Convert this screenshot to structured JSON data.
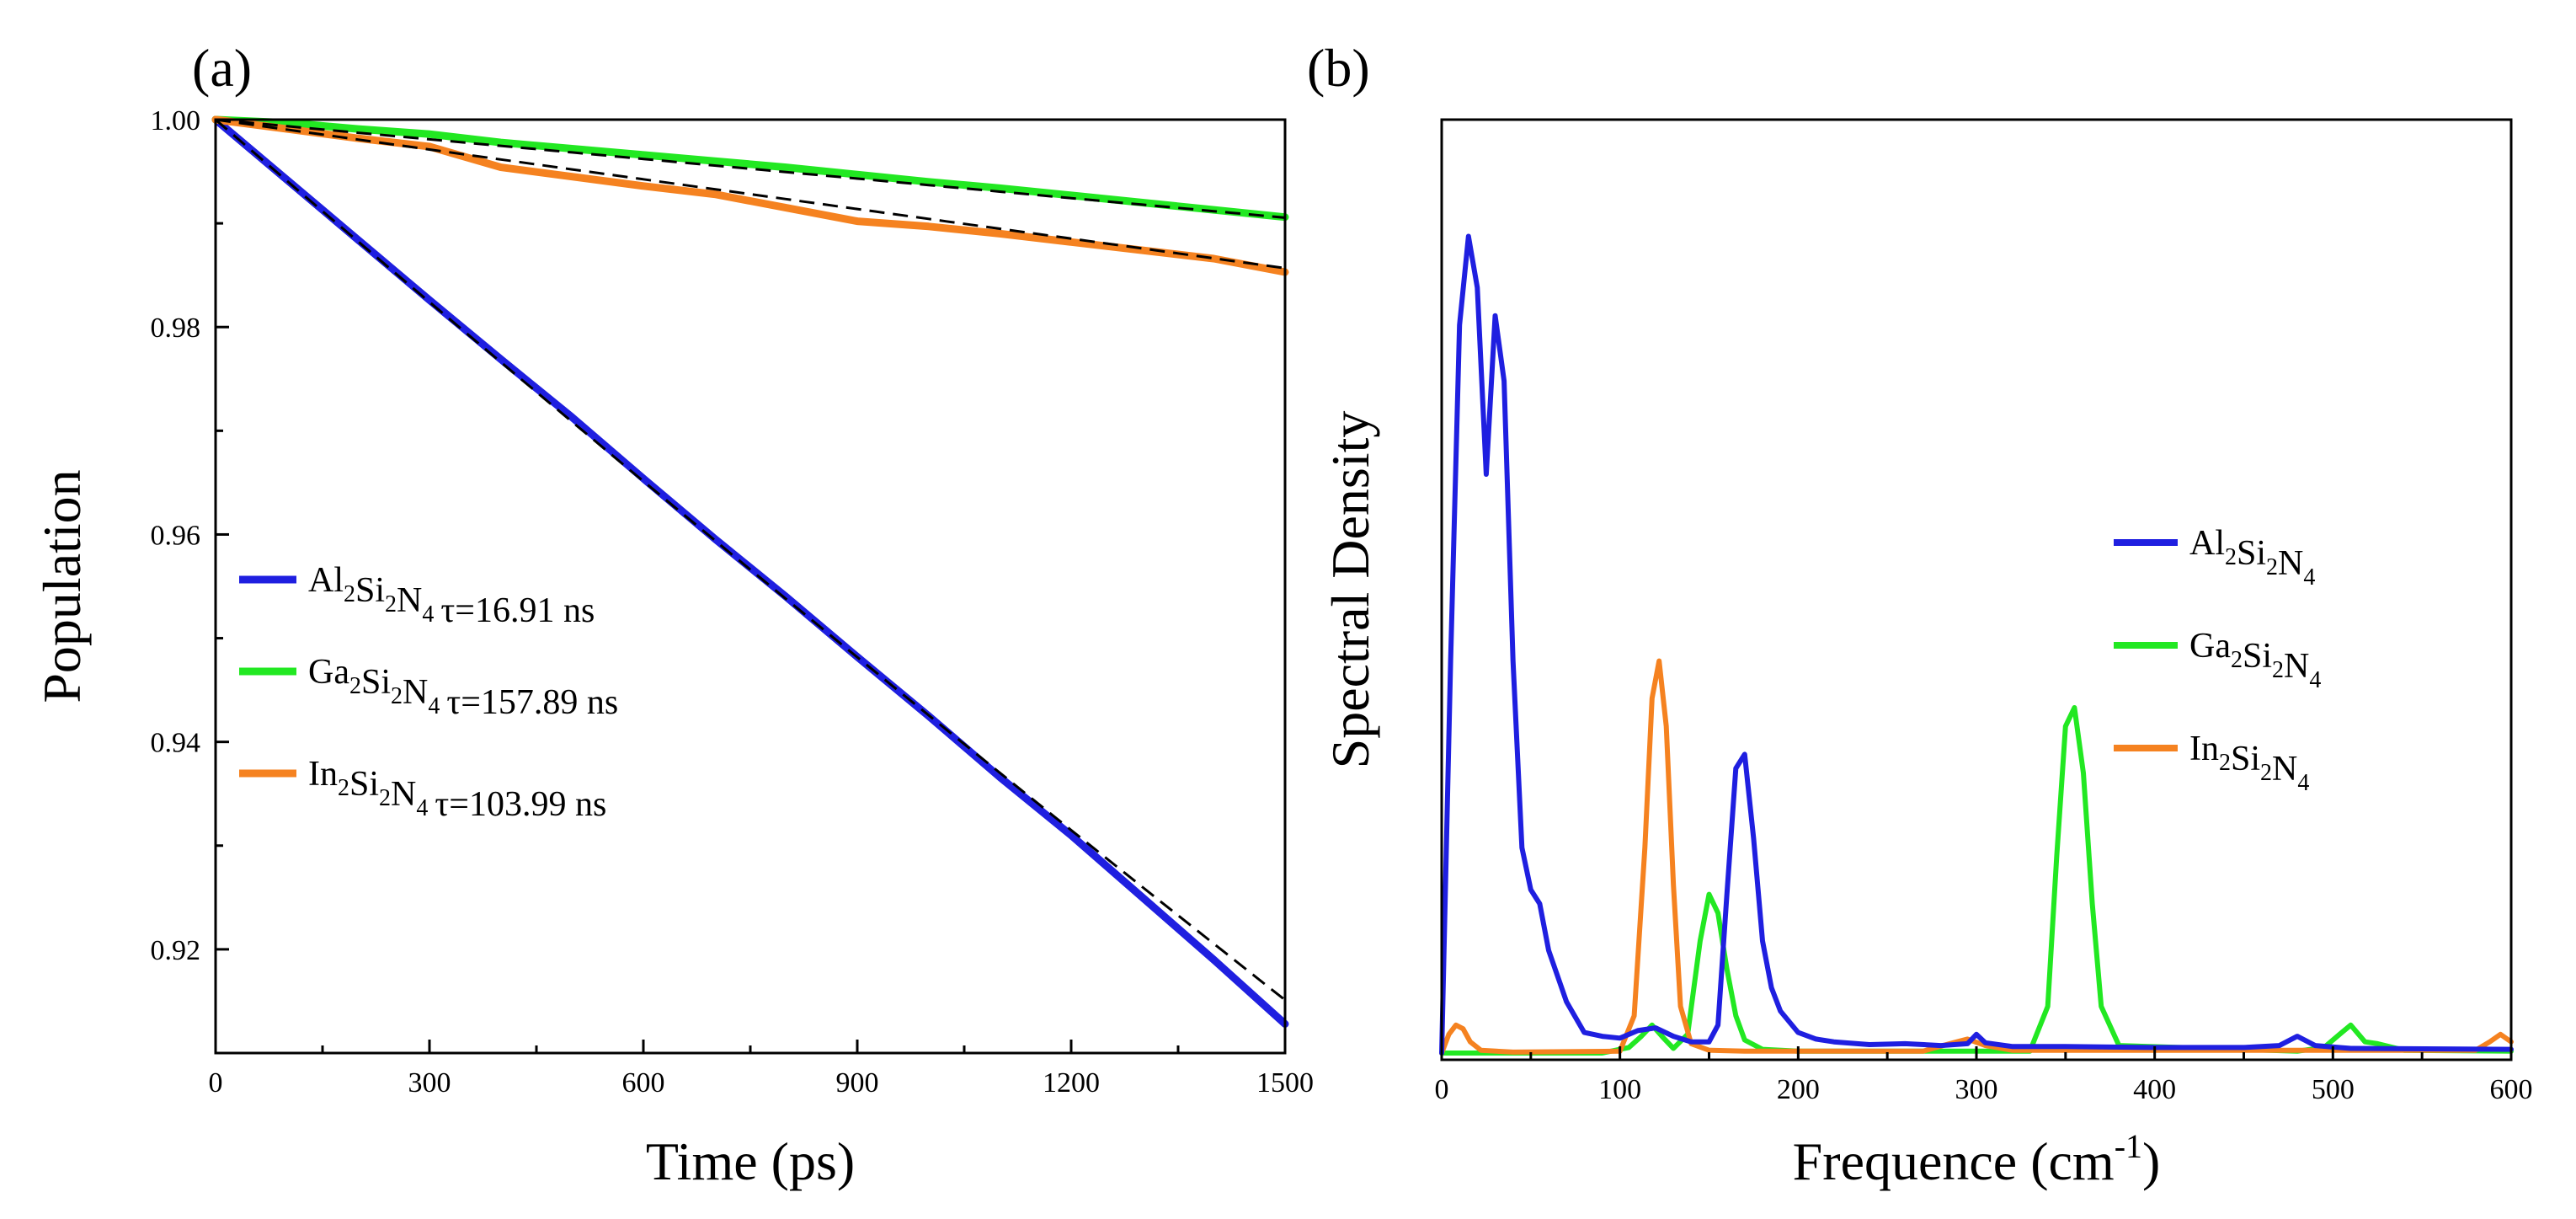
{
  "chart_data": [
    {
      "panel_label": "(a)",
      "type": "line",
      "xlabel": "Time (ps)",
      "ylabel": "Population",
      "xlim": [
        0,
        1500
      ],
      "ylim": [
        0.91,
        1.0
      ],
      "xticks": [
        0,
        300,
        600,
        900,
        1200,
        1500
      ],
      "yticks": [
        0.92,
        0.94,
        0.96,
        0.98,
        1.0
      ],
      "xtick_labels": [
        "0",
        "300",
        "600",
        "900",
        "1200",
        "1500"
      ],
      "ytick_labels": [
        "0.92",
        "0.94",
        "0.96",
        "0.98",
        "1.00"
      ],
      "legend_position": "center-left",
      "series": [
        {
          "name": "Al2Si2N4",
          "formula": [
            {
              "t": "Al",
              "s": "2"
            },
            {
              "t": "Si",
              "s": "2"
            },
            {
              "t": "N",
              "s": "4"
            }
          ],
          "tau_label": "τ=16.91 ns",
          "tau_ns": 16.91,
          "color": "#1f1fe0",
          "x": [
            0,
            100,
            200,
            300,
            400,
            500,
            600,
            700,
            800,
            900,
            1000,
            1100,
            1200,
            1300,
            1400,
            1500
          ],
          "y": [
            1.0,
            0.9942,
            0.9884,
            0.9826,
            0.9769,
            0.9713,
            0.9654,
            0.9596,
            0.954,
            0.9482,
            0.9425,
            0.9366,
            0.931,
            0.925,
            0.919,
            0.9128
          ]
        },
        {
          "name": "Ga2Si2N4",
          "formula": [
            {
              "t": "Ga",
              "s": "2"
            },
            {
              "t": "Si",
              "s": "2"
            },
            {
              "t": "N",
              "s": "4"
            }
          ],
          "tau_label": "τ=157.89 ns",
          "tau_ns": 157.89,
          "color": "#22e822",
          "x": [
            0,
            100,
            200,
            300,
            400,
            500,
            600,
            700,
            800,
            900,
            1000,
            1100,
            1200,
            1300,
            1400,
            1500
          ],
          "y": [
            1.0,
            0.9997,
            0.9991,
            0.9986,
            0.9978,
            0.9972,
            0.9966,
            0.996,
            0.9954,
            0.9947,
            0.994,
            0.9934,
            0.9927,
            0.992,
            0.9913,
            0.9906
          ]
        },
        {
          "name": "In2Si2N4",
          "formula": [
            {
              "t": "In",
              "s": "2"
            },
            {
              "t": "Si",
              "s": "2"
            },
            {
              "t": "N",
              "s": "4"
            }
          ],
          "tau_label": "τ=103.99 ns",
          "tau_ns": 103.99,
          "color": "#f58220",
          "x": [
            0,
            100,
            200,
            300,
            400,
            500,
            600,
            700,
            800,
            900,
            1000,
            1100,
            1200,
            1300,
            1400,
            1500
          ],
          "y": [
            1.0,
            0.9991,
            0.9982,
            0.9974,
            0.9954,
            0.9945,
            0.9936,
            0.9928,
            0.9915,
            0.9902,
            0.9897,
            0.989,
            0.9882,
            0.9874,
            0.9866,
            0.9853
          ]
        }
      ],
      "fits": {
        "style": "dashed",
        "color": "#000000"
      }
    },
    {
      "panel_label": "(b)",
      "type": "line",
      "xlabel": "Frequence (cm",
      "xlabel_sup": "-1",
      "xlabel_end": ")",
      "ylabel": "Spectral Density",
      "xlim": [
        0,
        600
      ],
      "ylim": [
        0,
        1.0
      ],
      "xticks": [
        0,
        100,
        200,
        300,
        400,
        500,
        600
      ],
      "xtick_labels": [
        "0",
        "100",
        "200",
        "300",
        "400",
        "500",
        "600"
      ],
      "legend_position": "center-right",
      "series": [
        {
          "name": "Al2Si2N4",
          "formula": [
            {
              "t": "Al",
              "s": "2"
            },
            {
              "t": "Si",
              "s": "2"
            },
            {
              "t": "N",
              "s": "4"
            }
          ],
          "color": "#1f1fe0",
          "x": [
            0,
            5,
            10,
            15,
            20,
            25,
            30,
            35,
            40,
            45,
            50,
            55,
            60,
            70,
            80,
            90,
            100,
            110,
            120,
            130,
            140,
            150,
            155,
            160,
            165,
            170,
            175,
            180,
            185,
            190,
            200,
            210,
            220,
            240,
            260,
            280,
            295,
            300,
            305,
            320,
            350,
            400,
            450,
            470,
            480,
            490,
            510,
            600
          ],
          "y": [
            0,
            0.42,
            0.78,
            0.875,
            0.82,
            0.62,
            0.79,
            0.72,
            0.42,
            0.22,
            0.175,
            0.16,
            0.11,
            0.055,
            0.022,
            0.018,
            0.016,
            0.024,
            0.027,
            0.018,
            0.012,
            0.012,
            0.03,
            0.17,
            0.305,
            0.32,
            0.23,
            0.12,
            0.07,
            0.045,
            0.022,
            0.015,
            0.012,
            0.009,
            0.01,
            0.008,
            0.01,
            0.02,
            0.011,
            0.007,
            0.007,
            0.006,
            0.006,
            0.008,
            0.018,
            0.008,
            0.005,
            0.004
          ]
        },
        {
          "name": "Ga2Si2N4",
          "formula": [
            {
              "t": "Ga",
              "s": "2"
            },
            {
              "t": "Si",
              "s": "2"
            },
            {
              "t": "N",
              "s": "4"
            }
          ],
          "color": "#22e822",
          "x": [
            0,
            90,
            105,
            112,
            118,
            124,
            130,
            138,
            145,
            150,
            155,
            160,
            165,
            170,
            180,
            200,
            330,
            340,
            345,
            350,
            355,
            360,
            365,
            370,
            380,
            480,
            495,
            505,
            510,
            518,
            525,
            540,
            600
          ],
          "y": [
            0,
            0,
            0.006,
            0.018,
            0.03,
            0.017,
            0.005,
            0.02,
            0.12,
            0.17,
            0.15,
            0.09,
            0.04,
            0.014,
            0.004,
            0.002,
            0.002,
            0.05,
            0.21,
            0.35,
            0.37,
            0.3,
            0.16,
            0.05,
            0.008,
            0.002,
            0.006,
            0.022,
            0.03,
            0.012,
            0.01,
            0.003,
            0.002
          ]
        },
        {
          "name": "In2Si2N4",
          "formula": [
            {
              "t": "In",
              "s": "2"
            },
            {
              "t": "Si",
              "s": "2"
            },
            {
              "t": "N",
              "s": "4"
            }
          ],
          "color": "#f58220",
          "x": [
            0,
            4,
            8,
            12,
            16,
            22,
            40,
            100,
            108,
            114,
            118,
            122,
            126,
            130,
            134,
            140,
            150,
            170,
            270,
            285,
            295,
            305,
            320,
            580,
            588,
            594,
            600
          ],
          "y": [
            0,
            0.02,
            0.03,
            0.026,
            0.012,
            0.003,
            0.001,
            0.002,
            0.04,
            0.22,
            0.38,
            0.42,
            0.35,
            0.18,
            0.05,
            0.01,
            0.003,
            0.002,
            0.002,
            0.01,
            0.015,
            0.008,
            0.003,
            0.003,
            0.012,
            0.02,
            0.012
          ]
        }
      ]
    }
  ]
}
